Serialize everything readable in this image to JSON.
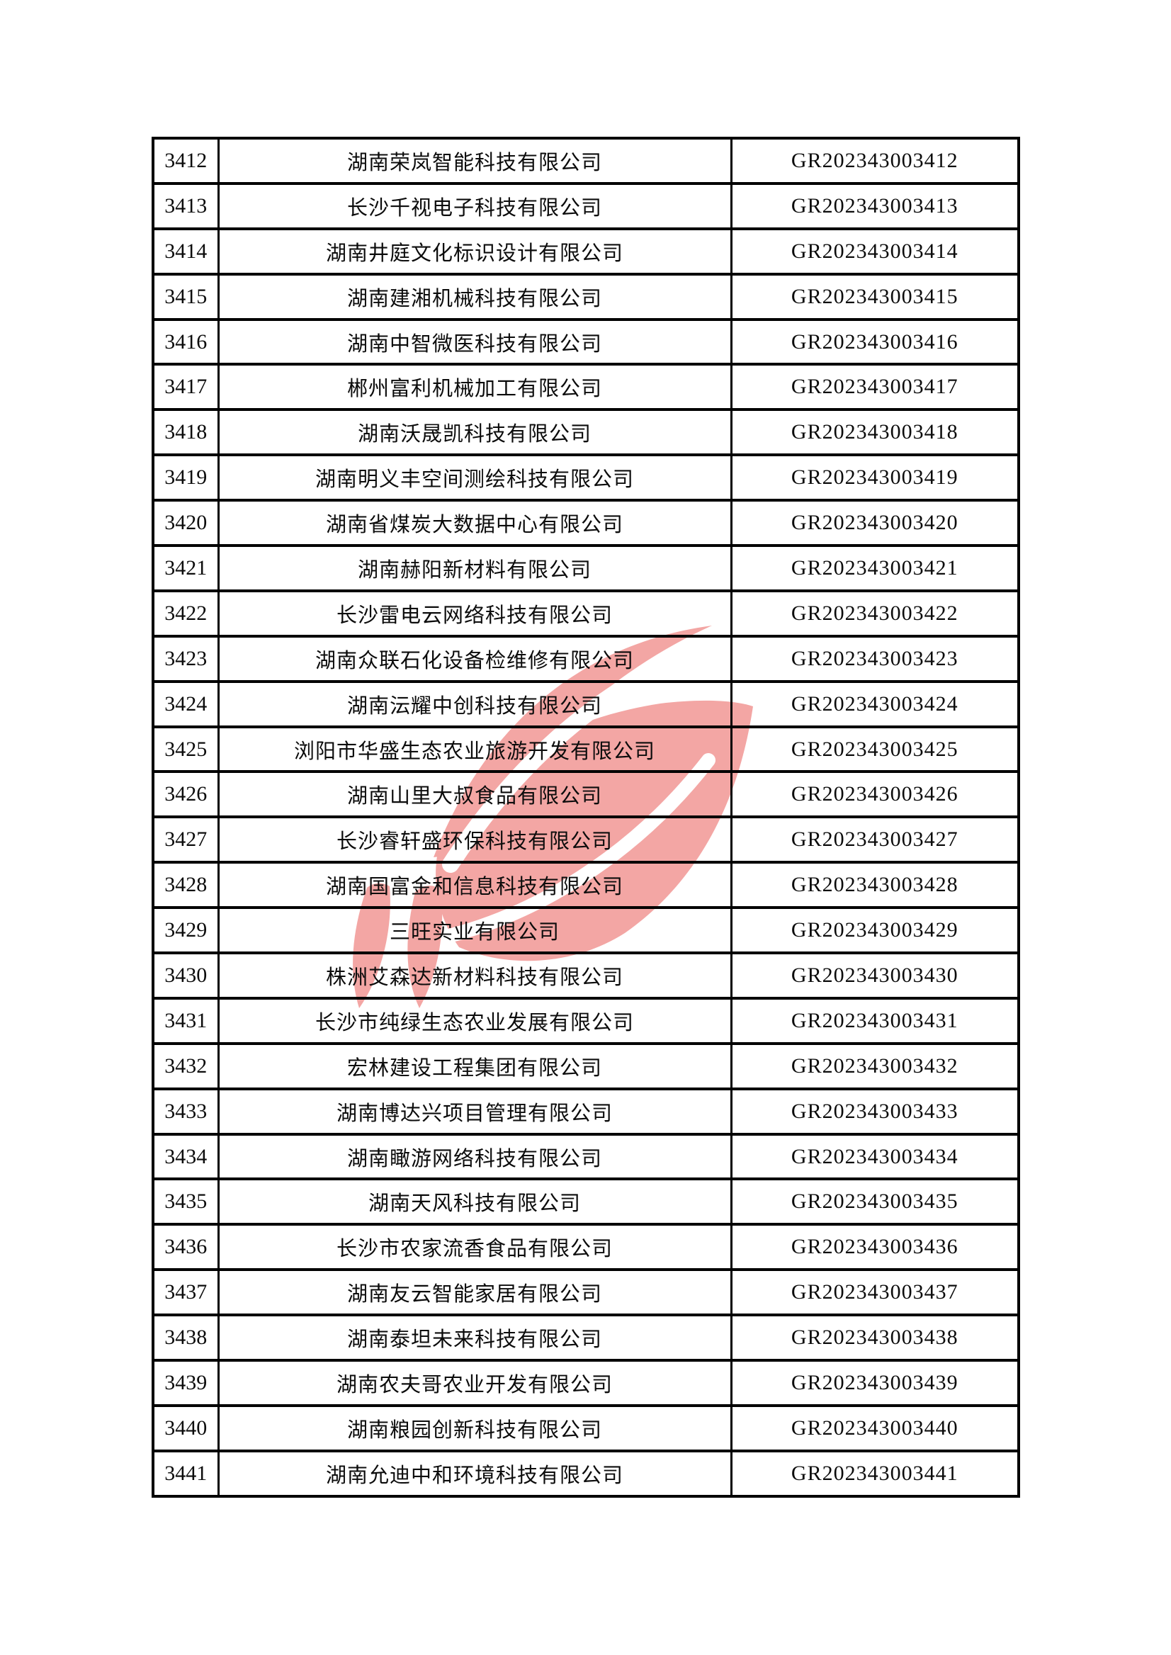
{
  "page": {
    "background_color": "#ffffff"
  },
  "watermark": {
    "description": "red-flame-torch-logo",
    "color": "#f3a6a4"
  },
  "table": {
    "rows": [
      {
        "seq": "3412",
        "company": "湖南荣岚智能科技有限公司",
        "cert": "GR202343003412"
      },
      {
        "seq": "3413",
        "company": "长沙千视电子科技有限公司",
        "cert": "GR202343003413"
      },
      {
        "seq": "3414",
        "company": "湖南井庭文化标识设计有限公司",
        "cert": "GR202343003414"
      },
      {
        "seq": "3415",
        "company": "湖南建湘机械科技有限公司",
        "cert": "GR202343003415"
      },
      {
        "seq": "3416",
        "company": "湖南中智微医科技有限公司",
        "cert": "GR202343003416"
      },
      {
        "seq": "3417",
        "company": "郴州富利机械加工有限公司",
        "cert": "GR202343003417"
      },
      {
        "seq": "3418",
        "company": "湖南沃晟凯科技有限公司",
        "cert": "GR202343003418"
      },
      {
        "seq": "3419",
        "company": "湖南明义丰空间测绘科技有限公司",
        "cert": "GR202343003419"
      },
      {
        "seq": "3420",
        "company": "湖南省煤炭大数据中心有限公司",
        "cert": "GR202343003420"
      },
      {
        "seq": "3421",
        "company": "湖南赫阳新材料有限公司",
        "cert": "GR202343003421"
      },
      {
        "seq": "3422",
        "company": "长沙雷电云网络科技有限公司",
        "cert": "GR202343003422"
      },
      {
        "seq": "3423",
        "company": "湖南众联石化设备检维修有限公司",
        "cert": "GR202343003423"
      },
      {
        "seq": "3424",
        "company": "湖南沄耀中创科技有限公司",
        "cert": "GR202343003424"
      },
      {
        "seq": "3425",
        "company": "浏阳市华盛生态农业旅游开发有限公司",
        "cert": "GR202343003425"
      },
      {
        "seq": "3426",
        "company": "湖南山里大叔食品有限公司",
        "cert": "GR202343003426"
      },
      {
        "seq": "3427",
        "company": "长沙睿轩盛环保科技有限公司",
        "cert": "GR202343003427"
      },
      {
        "seq": "3428",
        "company": "湖南国富金和信息科技有限公司",
        "cert": "GR202343003428"
      },
      {
        "seq": "3429",
        "company": "三旺实业有限公司",
        "cert": "GR202343003429"
      },
      {
        "seq": "3430",
        "company": "株洲艾森达新材料科技有限公司",
        "cert": "GR202343003430"
      },
      {
        "seq": "3431",
        "company": "长沙市纯绿生态农业发展有限公司",
        "cert": "GR202343003431"
      },
      {
        "seq": "3432",
        "company": "宏林建设工程集团有限公司",
        "cert": "GR202343003432"
      },
      {
        "seq": "3433",
        "company": "湖南博达兴项目管理有限公司",
        "cert": "GR202343003433"
      },
      {
        "seq": "3434",
        "company": "湖南瞰游网络科技有限公司",
        "cert": "GR202343003434"
      },
      {
        "seq": "3435",
        "company": "湖南天风科技有限公司",
        "cert": "GR202343003435"
      },
      {
        "seq": "3436",
        "company": "长沙市农家流香食品有限公司",
        "cert": "GR202343003436"
      },
      {
        "seq": "3437",
        "company": "湖南友云智能家居有限公司",
        "cert": "GR202343003437"
      },
      {
        "seq": "3438",
        "company": "湖南泰坦未来科技有限公司",
        "cert": "GR202343003438"
      },
      {
        "seq": "3439",
        "company": "湖南农夫哥农业开发有限公司",
        "cert": "GR202343003439"
      },
      {
        "seq": "3440",
        "company": "湖南粮园创新科技有限公司",
        "cert": "GR202343003440"
      },
      {
        "seq": "3441",
        "company": "湖南允迪中和环境科技有限公司",
        "cert": "GR202343003441"
      }
    ]
  }
}
